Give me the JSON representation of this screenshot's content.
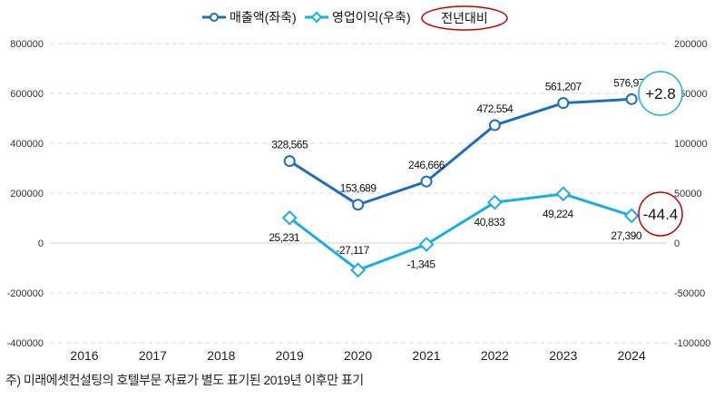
{
  "chart_data": {
    "type": "line",
    "categories": [
      "2016",
      "2017",
      "2018",
      "2019",
      "2020",
      "2021",
      "2022",
      "2023",
      "2024"
    ],
    "series": [
      {
        "name": "매출액(좌축)",
        "axis": "left",
        "color": "#1f6fb8",
        "marker": "circle",
        "values": [
          null,
          null,
          null,
          328565,
          153689,
          246666,
          472554,
          561207,
          576974
        ],
        "labels": [
          "",
          "",
          "",
          "328,565",
          "153,689",
          "246,666",
          "472,554",
          "561,207",
          "576,974"
        ]
      },
      {
        "name": "영업이익(우축)",
        "axis": "right",
        "color": "#1aaee0",
        "marker": "diamond",
        "values": [
          null,
          null,
          null,
          25231,
          -27117,
          -1345,
          40833,
          49224,
          27390
        ],
        "labels": [
          "",
          "",
          "",
          "25,231",
          "-27,117",
          "-1,345",
          "40,833",
          "49,224",
          "27,390"
        ]
      }
    ],
    "left_axis": {
      "ylim": [
        -400000,
        800000
      ],
      "ticks": [
        "800000",
        "600000",
        "400000",
        "200000",
        "0",
        "-200000",
        "-400000"
      ]
    },
    "right_axis": {
      "ylim": [
        -100000,
        200000
      ],
      "ticks": [
        "200000",
        "150000",
        "100000",
        "50000",
        "0",
        "-50000",
        "-100000"
      ]
    },
    "grid": true,
    "legend_position": "top-center",
    "legend_extra": "전년대비",
    "annotations": [
      {
        "text": "+2.8",
        "series": 0,
        "color": "#1aaee0"
      },
      {
        "text": "-44.4",
        "series": 1,
        "color": "#c00000"
      }
    ]
  },
  "note": "주) 미래에셋컨설팅의 호텔부문 자료가 별도 표기된 2019년 이후만 표기"
}
